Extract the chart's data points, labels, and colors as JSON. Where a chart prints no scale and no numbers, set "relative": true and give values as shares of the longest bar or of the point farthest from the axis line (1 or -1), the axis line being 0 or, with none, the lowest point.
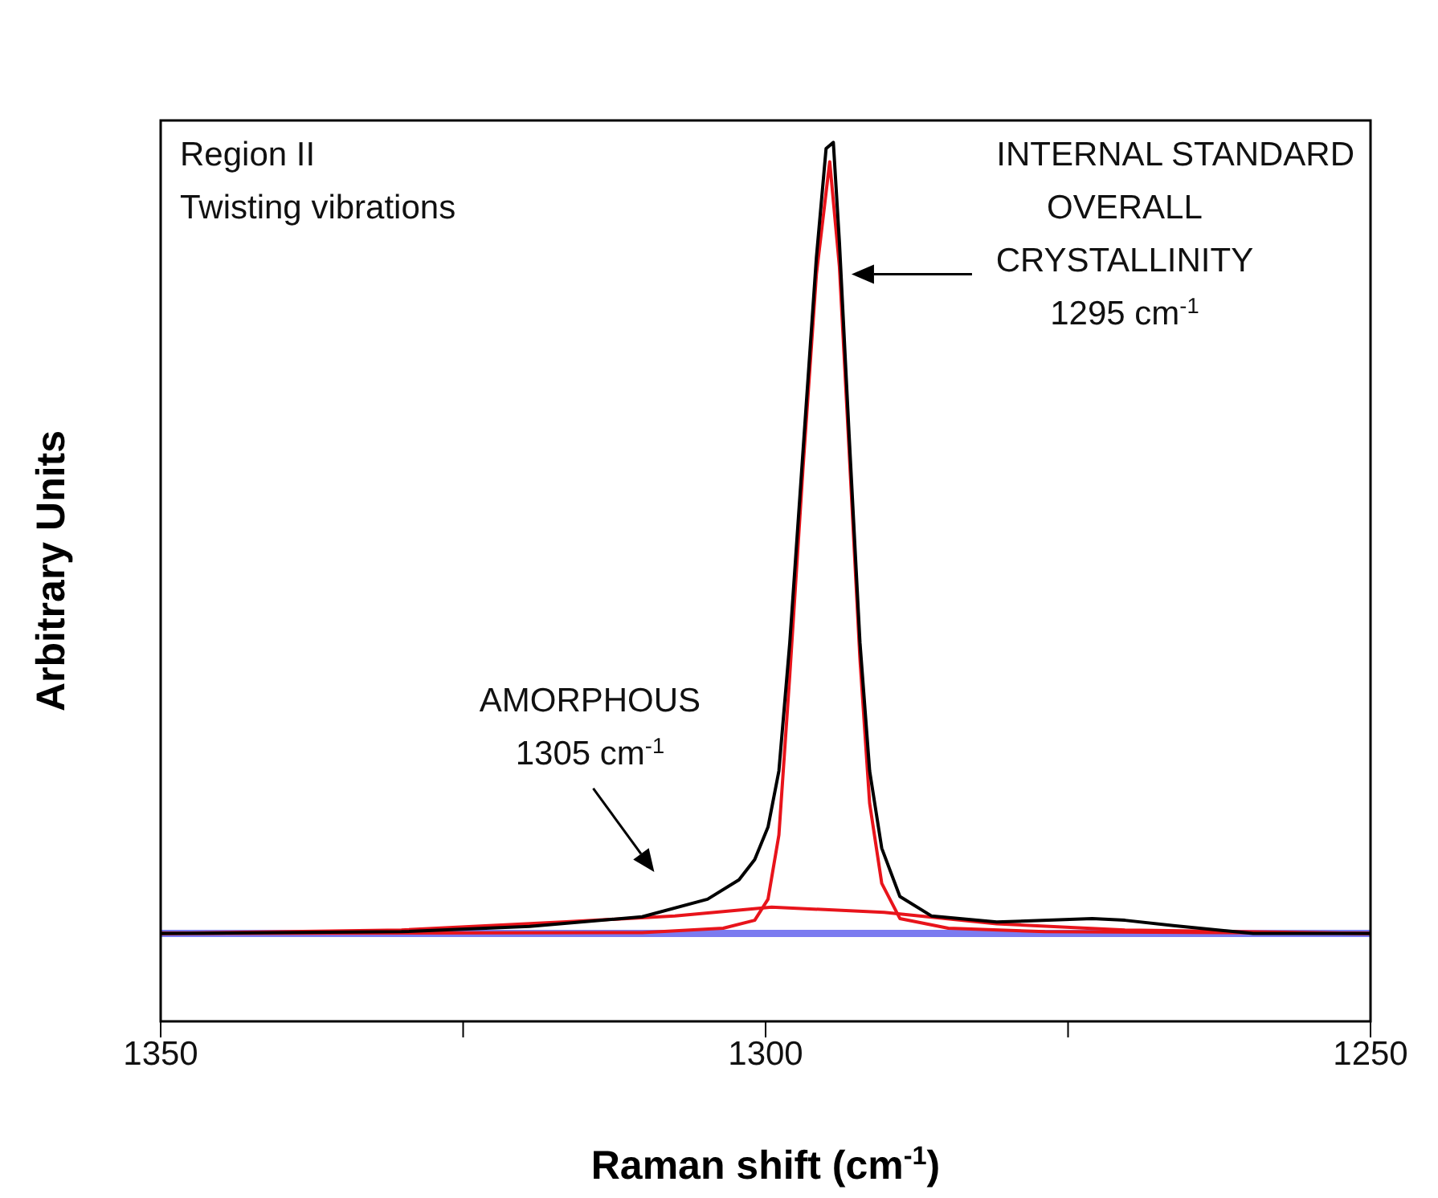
{
  "chart_data": {
    "type": "line",
    "relative": true,
    "xlabel": "Raman shift (cm$^{-1}$)",
    "ylabel": "Arbitrary Units",
    "xlim": [
      1350,
      1250
    ],
    "xticks": [
      1350,
      {
        "value": 1325,
        "label": null
      },
      1300,
      {
        "value": 1275,
        "label": null
      },
      1250
    ],
    "tick_labels": "x",
    "marker": "none",
    "line_style": "solid",
    "annotations": [
      "Region II\nTwisting vibrations",
      "INTERNAL STANDARD",
      "OVERALL\nCRYSTALLINITY\n1295 cm$^{-1}$",
      "AMORPHOUS\n1305 cm$^{-1}$"
    ],
    "series": [
      {
        "color": "#7b7bf0",
        "x": [
          1350,
          1250
        ],
        "values": [
          0.1,
          0.1
        ]
      },
      {
        "color": "#e8141b",
        "x": [
          1350,
          1330.1,
          1316.8,
          1307.5,
          1299.5,
          1290.2,
          1280.9,
          1270.3,
          1250
        ],
        "values": [
          0.1,
          0.104,
          0.113,
          0.12,
          0.13,
          0.124,
          0.111,
          0.104,
          0.1
        ]
      },
      {
        "color": "#e8141b",
        "x": [
          1350,
          1310.2,
          1303.5,
          1300.9,
          1299.8,
          1298.9,
          1298.0,
          1296.9,
          1295.8,
          1294.7,
          1293.9,
          1293.1,
          1292.2,
          1291.4,
          1290.4,
          1288.9,
          1284.9,
          1276.9,
          1250
        ],
        "values": [
          0.1,
          0.101,
          0.106,
          0.115,
          0.139,
          0.212,
          0.394,
          0.631,
          0.85,
          0.978,
          0.859,
          0.65,
          0.412,
          0.248,
          0.157,
          0.117,
          0.106,
          0.102,
          0.1
        ]
      },
      {
        "color": "#000000",
        "x": [
          1350,
          1330.1,
          1319.5,
          1310.2,
          1304.8,
          1302.2,
          1300.9,
          1299.8,
          1298.9,
          1298.0,
          1296.9,
          1295.8,
          1295.0,
          1294.4,
          1293.9,
          1293.1,
          1292.2,
          1291.4,
          1290.4,
          1288.9,
          1286.3,
          1280.9,
          1273.0,
          1270.3,
          1266.3,
          1259.7,
          1250
        ],
        "values": [
          0.1,
          0.102,
          0.108,
          0.119,
          0.139,
          0.161,
          0.184,
          0.221,
          0.285,
          0.431,
          0.65,
          0.869,
          0.993,
          1.0,
          0.887,
          0.668,
          0.431,
          0.285,
          0.197,
          0.142,
          0.12,
          0.113,
          0.117,
          0.115,
          0.109,
          0.1,
          0.1
        ]
      }
    ]
  }
}
